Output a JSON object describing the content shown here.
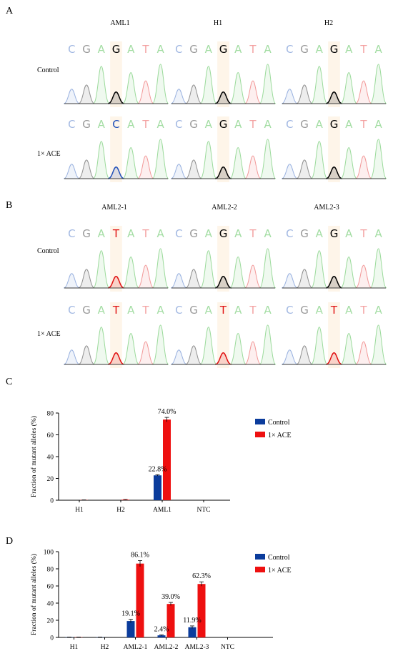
{
  "figure": {
    "panelA": {
      "letter": "A",
      "columns": [
        "AML1",
        "H1",
        "H2"
      ],
      "rows": [
        "Control",
        "1× ACE"
      ],
      "sequences": [
        [
          "CGAGATA",
          "CGAGATA",
          "CGAGATA"
        ],
        [
          "CGACATA",
          "CGAGATA",
          "CGAGATA"
        ]
      ],
      "highlight_index": 3
    },
    "panelB": {
      "letter": "B",
      "columns": [
        "AML2-1",
        "AML2-2",
        "AML2-3"
      ],
      "rows": [
        "Control",
        "1× ACE"
      ],
      "sequences": [
        [
          "CGATATA",
          "CGAGATA",
          "CGAGATA"
        ],
        [
          "CGATATA",
          "CGATATA",
          "CGATATA"
        ]
      ],
      "highlight_index": 3
    },
    "base_colors": {
      "A": "#7ccf7c",
      "C": "#7a9ad6",
      "G": "#6e6e6e",
      "T": "#ee7a7a",
      "C_hi": "#1f4fb8",
      "T_hi": "#e01010",
      "G_hi": "#000000"
    }
  },
  "chart_data": [
    {
      "type": "bar",
      "panel": "C",
      "categories": [
        "H1",
        "H2",
        "AML1",
        "NTC"
      ],
      "series": [
        {
          "name": "Control",
          "values": [
            0,
            0,
            22.8,
            0
          ],
          "errors": [
            0,
            0,
            0.6,
            0
          ],
          "color": "#0b3c9c"
        },
        {
          "name": "1× ACE",
          "values": [
            0.2,
            0.5,
            74.0,
            0
          ],
          "errors": [
            0.1,
            0.2,
            2.0,
            0
          ],
          "color": "#ee1010"
        }
      ],
      "data_labels": [
        {
          "series": 0,
          "index": 2,
          "text": "22.8%"
        },
        {
          "series": 1,
          "index": 2,
          "text": "74.0%"
        }
      ],
      "ylabel": "Fraction of mutant alleles (%)",
      "ylim": [
        0,
        80
      ],
      "yticks": [
        "0",
        "20",
        "40",
        "60",
        "80"
      ],
      "legend": "right"
    },
    {
      "type": "bar",
      "panel": "D",
      "categories": [
        "H1",
        "H2",
        "AML2-1",
        "AML2-2",
        "AML2-3",
        "NTC"
      ],
      "series": [
        {
          "name": "Control",
          "values": [
            0.3,
            0.3,
            19.1,
            2.4,
            11.9,
            0
          ],
          "errors": [
            0.1,
            0.1,
            2.0,
            0.5,
            1.5,
            0
          ],
          "color": "#0b3c9c"
        },
        {
          "name": "1× ACE",
          "values": [
            0.3,
            0,
            86.1,
            39.0,
            62.3,
            0
          ],
          "errors": [
            0.1,
            0,
            3.5,
            1.8,
            2.5,
            0
          ],
          "color": "#ee1010"
        }
      ],
      "data_labels": [
        {
          "series": 0,
          "index": 2,
          "text": "19.1%"
        },
        {
          "series": 1,
          "index": 2,
          "text": "86.1%"
        },
        {
          "series": 0,
          "index": 3,
          "text": "2.4%"
        },
        {
          "series": 1,
          "index": 3,
          "text": "39.0%"
        },
        {
          "series": 0,
          "index": 4,
          "text": "11.9%"
        },
        {
          "series": 1,
          "index": 4,
          "text": "62.3%"
        }
      ],
      "ylabel": "Fraction of mutant alleles (%)",
      "ylim": [
        0,
        100
      ],
      "yticks": [
        "0",
        "20",
        "40",
        "60",
        "80",
        "100"
      ],
      "legend": "right"
    }
  ]
}
